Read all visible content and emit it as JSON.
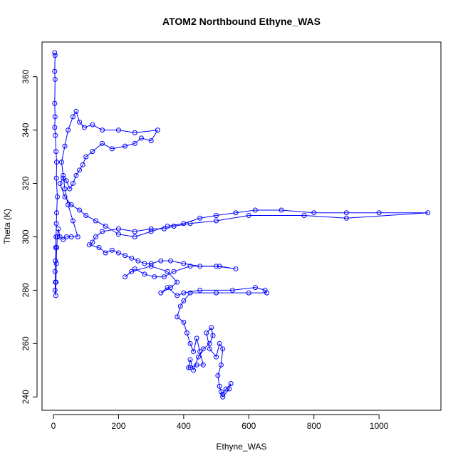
{
  "chart_data": {
    "type": "scatter",
    "title": "ATOM2 Northbound Ethyne_WAS",
    "xlabel": "Ethyne_WAS",
    "ylabel": "Theta (K)",
    "xlim": [
      -35,
      1190
    ],
    "ylim": [
      235,
      373
    ],
    "xticks": [
      0,
      200,
      400,
      600,
      800,
      1000
    ],
    "yticks": [
      240,
      260,
      280,
      300,
      320,
      340,
      360
    ],
    "grid": false,
    "legend": "none",
    "marker": "open-circle",
    "connect_points": true,
    "series_color": "#0000ff",
    "series": [
      {
        "points": [
          [
            4,
            369
          ],
          [
            5,
            368
          ],
          [
            4,
            362
          ],
          [
            5,
            359
          ],
          [
            4,
            350
          ],
          [
            5,
            345
          ],
          [
            4,
            341
          ],
          [
            6,
            338
          ],
          [
            8,
            332
          ],
          [
            10,
            328
          ],
          [
            9,
            322
          ],
          [
            12,
            315
          ],
          [
            10,
            309
          ],
          [
            9,
            305
          ],
          [
            8,
            300
          ],
          [
            7,
            296
          ],
          [
            6,
            291
          ],
          [
            5,
            287
          ],
          [
            6,
            283
          ],
          [
            5,
            280
          ],
          [
            7,
            278
          ],
          [
            8,
            283
          ],
          [
            9,
            290
          ],
          [
            10,
            296
          ],
          [
            12,
            300
          ],
          [
            15,
            303
          ],
          [
            20,
            300
          ],
          [
            30,
            299
          ],
          [
            40,
            300
          ],
          [
            55,
            300
          ],
          [
            75,
            300
          ],
          [
            60,
            306
          ],
          [
            45,
            312
          ],
          [
            35,
            318
          ],
          [
            30,
            323
          ],
          [
            25,
            328
          ],
          [
            35,
            334
          ],
          [
            45,
            340
          ],
          [
            60,
            345
          ],
          [
            70,
            347
          ],
          [
            80,
            343
          ],
          [
            95,
            341
          ],
          [
            120,
            342
          ],
          [
            150,
            340
          ],
          [
            200,
            340
          ],
          [
            250,
            339
          ],
          [
            320,
            340
          ],
          [
            300,
            336
          ],
          [
            270,
            337
          ],
          [
            250,
            335
          ],
          [
            220,
            334
          ],
          [
            180,
            333
          ],
          [
            150,
            335
          ],
          [
            120,
            332
          ],
          [
            100,
            330
          ],
          [
            90,
            327
          ],
          [
            80,
            325
          ],
          [
            70,
            323
          ],
          [
            60,
            320
          ],
          [
            50,
            318
          ],
          [
            40,
            321
          ],
          [
            30,
            322
          ],
          [
            20,
            320
          ],
          [
            35,
            315
          ],
          [
            55,
            312
          ],
          [
            80,
            310
          ],
          [
            100,
            308
          ],
          [
            130,
            306
          ],
          [
            160,
            304
          ],
          [
            200,
            301
          ],
          [
            250,
            300
          ],
          [
            300,
            302
          ],
          [
            350,
            304
          ],
          [
            400,
            305
          ],
          [
            450,
            307
          ],
          [
            500,
            308
          ],
          [
            560,
            309
          ],
          [
            620,
            310
          ],
          [
            700,
            310
          ],
          [
            800,
            309
          ],
          [
            900,
            309
          ],
          [
            1000,
            309
          ],
          [
            1150,
            309
          ],
          [
            900,
            307
          ],
          [
            770,
            308
          ],
          [
            600,
            308
          ],
          [
            500,
            306
          ],
          [
            420,
            305
          ],
          [
            370,
            304
          ],
          [
            340,
            303
          ],
          [
            300,
            303
          ],
          [
            250,
            302
          ],
          [
            200,
            303
          ],
          [
            150,
            302
          ],
          [
            130,
            300
          ],
          [
            120,
            298
          ],
          [
            110,
            297
          ],
          [
            140,
            296
          ],
          [
            160,
            294
          ],
          [
            180,
            295
          ],
          [
            200,
            294
          ],
          [
            220,
            293
          ],
          [
            240,
            292
          ],
          [
            260,
            291
          ],
          [
            280,
            290
          ],
          [
            300,
            290
          ],
          [
            330,
            291
          ],
          [
            360,
            291
          ],
          [
            400,
            290
          ],
          [
            450,
            289
          ],
          [
            510,
            289
          ],
          [
            560,
            288
          ],
          [
            500,
            289
          ],
          [
            420,
            289
          ],
          [
            370,
            287
          ],
          [
            340,
            285
          ],
          [
            310,
            285
          ],
          [
            280,
            286
          ],
          [
            250,
            288
          ],
          [
            220,
            285
          ],
          [
            240,
            287
          ],
          [
            300,
            289
          ],
          [
            350,
            287
          ],
          [
            380,
            283
          ],
          [
            360,
            281
          ],
          [
            330,
            279
          ],
          [
            350,
            281
          ],
          [
            380,
            278
          ],
          [
            400,
            279
          ],
          [
            450,
            280
          ],
          [
            550,
            280
          ],
          [
            620,
            281
          ],
          [
            650,
            280
          ],
          [
            655,
            279
          ],
          [
            600,
            279
          ],
          [
            500,
            279
          ],
          [
            420,
            279
          ],
          [
            400,
            276
          ],
          [
            390,
            274
          ],
          [
            380,
            270
          ],
          [
            400,
            268
          ],
          [
            410,
            264
          ],
          [
            420,
            260
          ],
          [
            430,
            257
          ],
          [
            440,
            262
          ],
          [
            450,
            257
          ],
          [
            460,
            252
          ],
          [
            440,
            252
          ],
          [
            420,
            251
          ],
          [
            415,
            251
          ],
          [
            420,
            254
          ],
          [
            430,
            250
          ],
          [
            445,
            255
          ],
          [
            460,
            258
          ],
          [
            480,
            260
          ],
          [
            490,
            263
          ],
          [
            485,
            266
          ],
          [
            470,
            264
          ],
          [
            480,
            258
          ],
          [
            500,
            255
          ],
          [
            510,
            260
          ],
          [
            520,
            258
          ],
          [
            515,
            252
          ],
          [
            505,
            248
          ],
          [
            510,
            244
          ],
          [
            515,
            242
          ],
          [
            520,
            240
          ],
          [
            540,
            243
          ],
          [
            545,
            245
          ],
          [
            530,
            243
          ],
          [
            520,
            241
          ]
        ]
      }
    ]
  }
}
